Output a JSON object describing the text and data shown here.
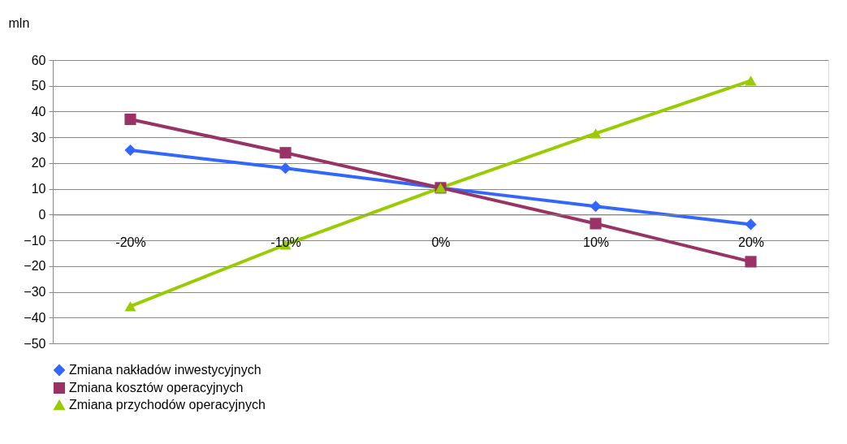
{
  "chart_data": {
    "type": "line",
    "ylabel": "mln",
    "categories": [
      "-20%",
      "-10%",
      "0%",
      "10%",
      "20%"
    ],
    "series": [
      {
        "name": "Zmiana nakładów inwestycyjnych",
        "color": "#3366ff",
        "marker": "diamond",
        "values": [
          25,
          18,
          10.4,
          3.2,
          -3.8
        ]
      },
      {
        "name": "Zmiana kosztów operacyjnych",
        "color": "#993366",
        "marker": "square",
        "values": [
          37,
          24,
          10.4,
          -3.5,
          -18.3
        ]
      },
      {
        "name": "Zmiana przychodów operacyjnych",
        "color": "#99cc00",
        "marker": "triangle",
        "values": [
          -35.6,
          -11.7,
          10.4,
          31.5,
          52
        ]
      }
    ],
    "ylim": [
      -50,
      60
    ],
    "yticks": [
      -50,
      -40,
      -30,
      -20,
      -10,
      0,
      10,
      20,
      30,
      40,
      50,
      60
    ],
    "grid": "y",
    "legend": "bottom"
  }
}
